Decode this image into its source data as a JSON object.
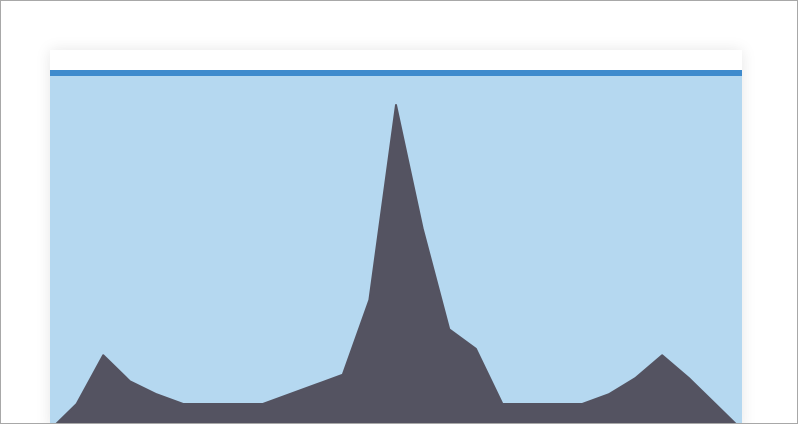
{
  "colors": {
    "accent": "#3f8bcd",
    "plot_background": "#b5d8f0",
    "area_fill": "#545361",
    "card_background": "#ffffff"
  },
  "chart_data": {
    "type": "area",
    "title": "",
    "xlabel": "",
    "ylabel": "",
    "grid": false,
    "x": [
      0,
      1,
      2,
      3,
      4,
      5,
      6,
      7,
      8,
      9,
      10,
      11,
      12,
      13,
      14,
      15,
      16,
      17,
      18,
      19,
      20,
      21,
      22,
      23,
      24,
      25,
      26
    ],
    "series": [
      {
        "values": [
          0.0,
          0.08,
          0.23,
          0.15,
          0.11,
          0.08,
          0.08,
          0.08,
          0.08,
          0.11,
          0.14,
          0.17,
          0.4,
          1.0,
          0.62,
          0.31,
          0.25,
          0.08,
          0.08,
          0.08,
          0.08,
          0.11,
          0.16,
          0.23,
          0.16,
          0.08,
          0.0
        ]
      }
    ],
    "xlim": [
      0,
      26
    ],
    "ylim": [
      0,
      1.0
    ]
  }
}
